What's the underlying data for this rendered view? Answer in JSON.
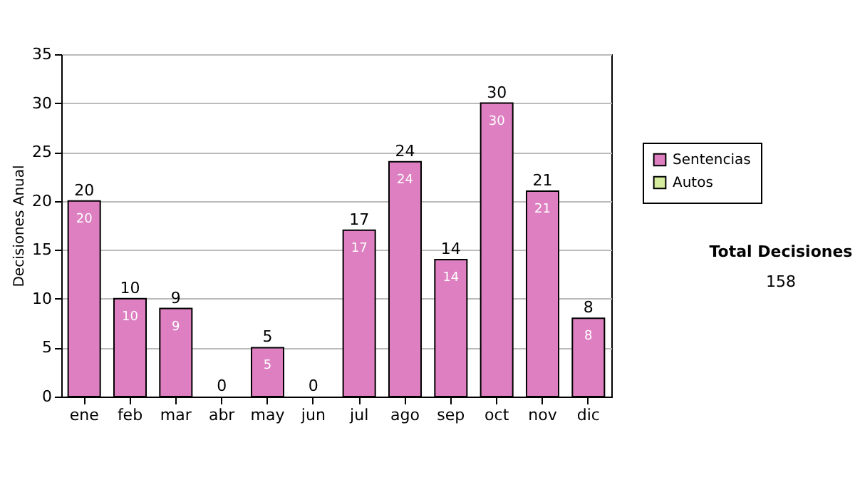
{
  "chart_data": {
    "type": "bar",
    "stacked": true,
    "ylabel": "Decisiones Anual",
    "categories": [
      "ene",
      "feb",
      "mar",
      "abr",
      "may",
      "jun",
      "jul",
      "ago",
      "sep",
      "oct",
      "nov",
      "dic"
    ],
    "series": [
      {
        "name": "Sentencias",
        "color": "#dd7fc0",
        "values": [
          20,
          10,
          9,
          0,
          5,
          0,
          17,
          24,
          14,
          30,
          21,
          8
        ],
        "value_labels": [
          "20",
          "10",
          "9",
          null,
          "5",
          null,
          "17",
          "24",
          "14",
          "30",
          "21",
          "8"
        ]
      },
      {
        "name": "Autos",
        "color": "#d4ec9c",
        "values": [
          0,
          0,
          0,
          0,
          0,
          0,
          0,
          0,
          0,
          0,
          0,
          0
        ],
        "value_labels": [
          null,
          null,
          null,
          null,
          null,
          null,
          null,
          null,
          null,
          null,
          null,
          null
        ]
      }
    ],
    "totals": [
      "20",
      "10",
      "9",
      "0",
      "5",
      "0",
      "17",
      "24",
      "14",
      "30",
      "21",
      "8"
    ],
    "ylim": [
      0,
      35
    ],
    "yticks": [
      0,
      5,
      10,
      15,
      20,
      25,
      30,
      35
    ],
    "grid": "y",
    "legend": "right",
    "annotations": [
      "Total Decisiones",
      "158"
    ]
  }
}
